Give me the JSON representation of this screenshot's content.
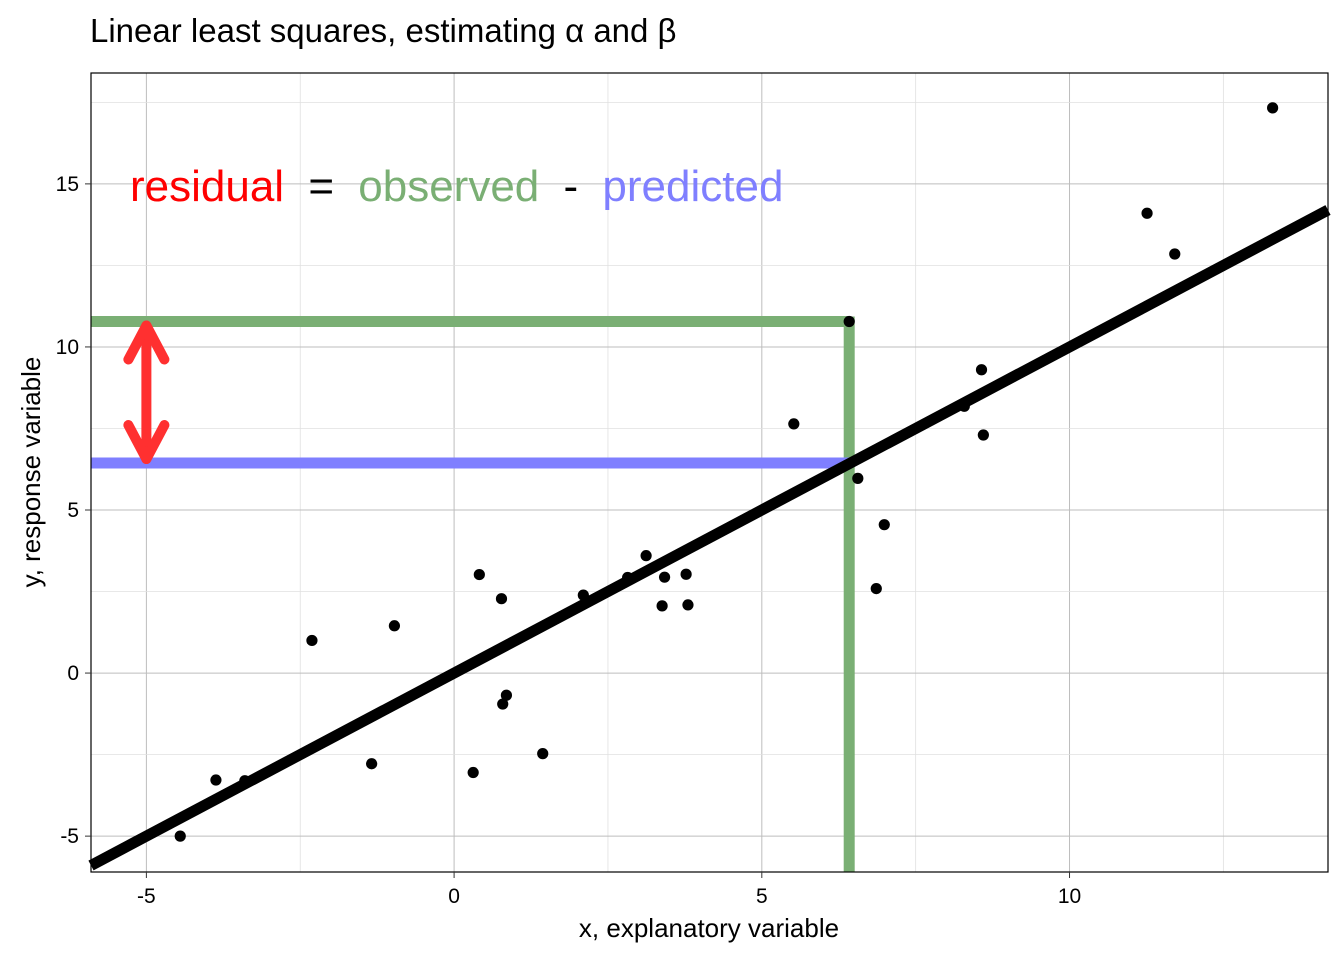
{
  "chart_data": {
    "type": "scatter",
    "title": "Linear least squares, estimating α and β",
    "xlabel": "x, explanatory variable",
    "ylabel": "y, response variable",
    "xlim": [
      -5.9,
      14.2
    ],
    "ylim": [
      -6.1,
      18.4
    ],
    "x_ticks": [
      -5,
      0,
      5,
      10
    ],
    "y_ticks": [
      -5,
      0,
      5,
      10,
      15
    ],
    "x_tick_labels": [
      "-5",
      "0",
      "5",
      "10"
    ],
    "y_tick_labels": [
      "-5",
      "0",
      "5",
      "10",
      "15"
    ],
    "grid": true,
    "points": [
      {
        "x": -4.45,
        "y": -5.0
      },
      {
        "x": -3.87,
        "y": -3.28
      },
      {
        "x": -3.4,
        "y": -3.3
      },
      {
        "x": -2.31,
        "y": 1.0
      },
      {
        "x": -1.34,
        "y": -2.78
      },
      {
        "x": -0.97,
        "y": 1.45
      },
      {
        "x": 0.31,
        "y": -3.05
      },
      {
        "x": 0.41,
        "y": 3.02
      },
      {
        "x": 0.77,
        "y": 2.28
      },
      {
        "x": 0.79,
        "y": -0.95
      },
      {
        "x": 0.85,
        "y": -0.68
      },
      {
        "x": 1.44,
        "y": -2.47
      },
      {
        "x": 2.1,
        "y": 2.39
      },
      {
        "x": 2.82,
        "y": 2.93
      },
      {
        "x": 3.12,
        "y": 3.6
      },
      {
        "x": 3.38,
        "y": 2.06
      },
      {
        "x": 3.42,
        "y": 2.94
      },
      {
        "x": 3.77,
        "y": 3.03
      },
      {
        "x": 3.8,
        "y": 2.09
      },
      {
        "x": 5.52,
        "y": 7.64
      },
      {
        "x": 6.42,
        "y": 10.78
      },
      {
        "x": 6.56,
        "y": 5.97
      },
      {
        "x": 6.86,
        "y": 2.59
      },
      {
        "x": 6.99,
        "y": 4.55
      },
      {
        "x": 8.29,
        "y": 8.18
      },
      {
        "x": 8.57,
        "y": 9.3
      },
      {
        "x": 8.6,
        "y": 7.3
      },
      {
        "x": 11.26,
        "y": 14.1
      },
      {
        "x": 11.71,
        "y": 12.85
      },
      {
        "x": 13.3,
        "y": 17.33
      }
    ],
    "fit_line": {
      "intercept": 0.0,
      "slope": 1.0,
      "color": "#000000"
    },
    "highlight": {
      "x": 6.42,
      "observed_y": 10.78,
      "predicted_y": 6.44,
      "residual_arrow_x": -5.0,
      "observed_color": "#7aaf74",
      "predicted_color": "#7f7fff",
      "residual_color": "#ff3030"
    },
    "annotation": {
      "residual": "residual",
      "equals": "=",
      "observed": "observed",
      "minus": "-",
      "predicted": "predicted",
      "residual_color": "#ff0000",
      "observed_color": "#7aaf74",
      "predicted_color": "#7f7fff"
    }
  }
}
